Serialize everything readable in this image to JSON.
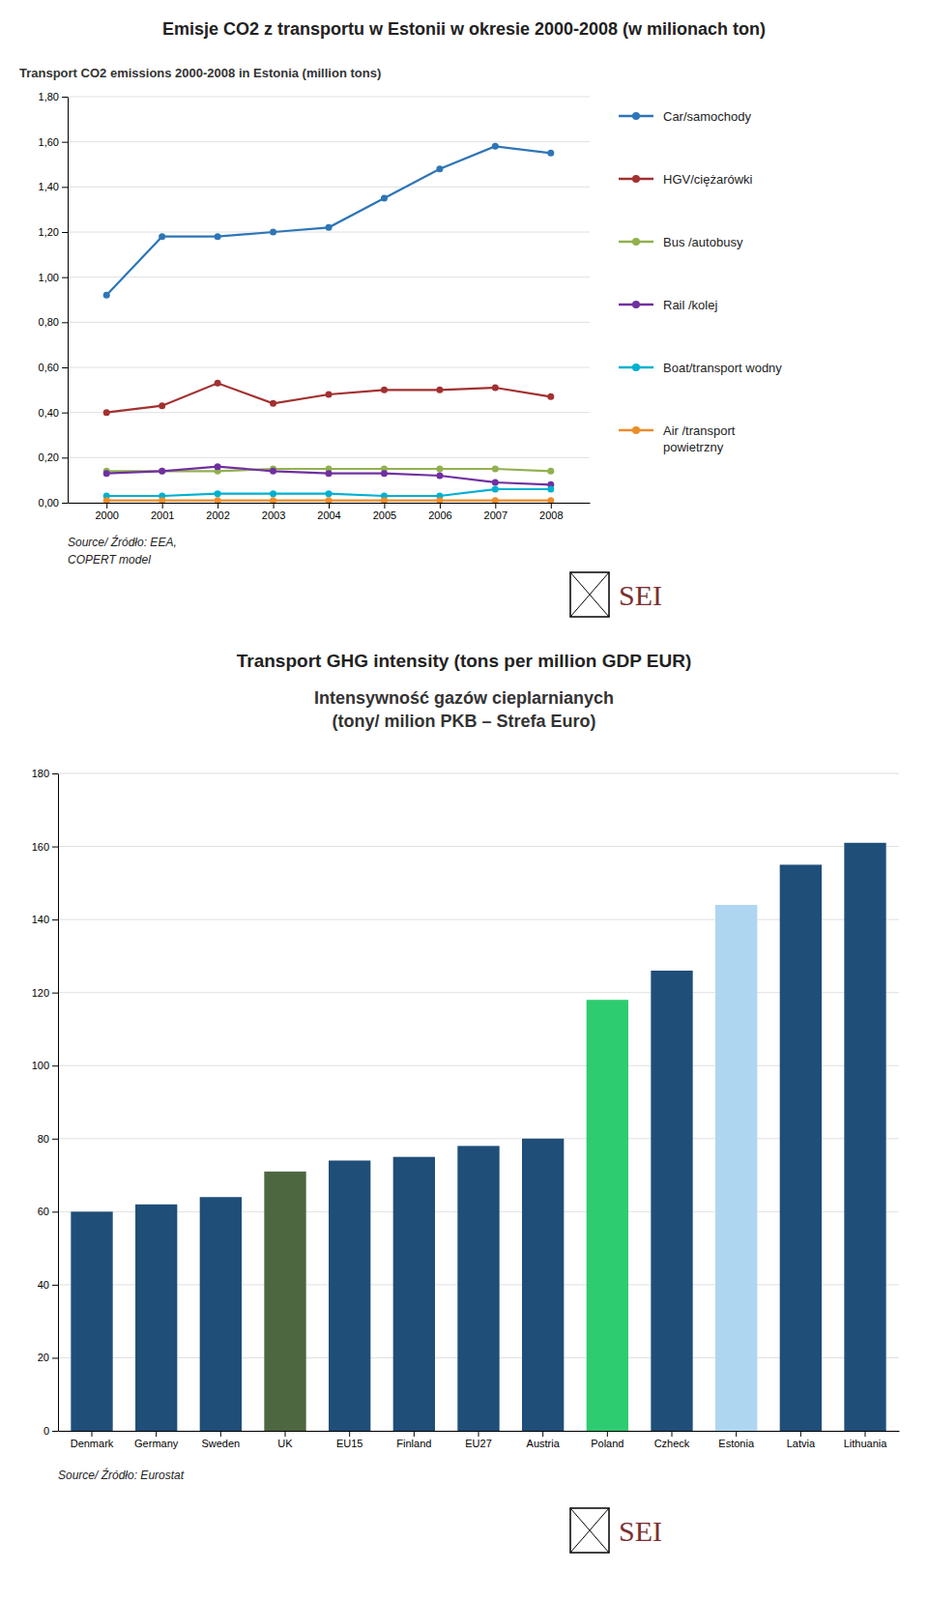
{
  "chart_data": [
    {
      "type": "line",
      "title": "Emisje CO2 z transportu w Estonii w okresie 2000-2008 (w milionach ton)",
      "subtitle": "Transport CO2 emissions 2000-2008 in Estonia (million tons)",
      "x": [
        2000,
        2001,
        2002,
        2003,
        2004,
        2005,
        2006,
        2007,
        2008
      ],
      "xlim": [
        1999.3,
        2008.7
      ],
      "xticks": [
        2000,
        2001,
        2002,
        2003,
        2004,
        2005,
        2006,
        2007,
        2008
      ],
      "ylim": [
        0.0,
        1.8
      ],
      "yticks": [
        {
          "value": 0.0,
          "label": "0,00"
        },
        {
          "value": 0.2,
          "label": "0,20"
        },
        {
          "value": 0.4,
          "label": "0,40"
        },
        {
          "value": 0.6,
          "label": "0,60"
        },
        {
          "value": 0.8,
          "label": "0,80"
        },
        {
          "value": 1.0,
          "label": "1,00"
        },
        {
          "value": 1.2,
          "label": "1,20"
        },
        {
          "value": 1.4,
          "label": "1,40"
        },
        {
          "value": 1.6,
          "label": "1,60"
        },
        {
          "value": 1.8,
          "label": "1,80"
        }
      ],
      "grid": true,
      "legend": "right",
      "marker": "circle",
      "series": [
        {
          "name": "Car/samochody",
          "color": "#2E75B6",
          "values": [
            0.92,
            1.18,
            1.18,
            1.2,
            1.22,
            1.35,
            1.48,
            1.58,
            1.55
          ]
        },
        {
          "name": "HGV/ciężarówki",
          "color": "#A33030",
          "values": [
            0.4,
            0.43,
            0.53,
            0.44,
            0.48,
            0.5,
            0.5,
            0.51,
            0.47
          ]
        },
        {
          "name": "Bus /autobusy",
          "color": "#92B04E",
          "values": [
            0.14,
            0.14,
            0.14,
            0.15,
            0.15,
            0.15,
            0.15,
            0.15,
            0.14
          ]
        },
        {
          "name": "Rail /kolej",
          "color": "#7030A0",
          "values": [
            0.13,
            0.14,
            0.16,
            0.14,
            0.13,
            0.13,
            0.12,
            0.09,
            0.08
          ]
        },
        {
          "name": "Boat/transport wodny",
          "color": "#00B0D0",
          "values": [
            0.03,
            0.03,
            0.04,
            0.04,
            0.04,
            0.03,
            0.03,
            0.06,
            0.06
          ]
        },
        {
          "name": "Air /transport\npowietrzny",
          "color": "#ED8C2A",
          "values": [
            0.01,
            0.01,
            0.01,
            0.01,
            0.01,
            0.01,
            0.01,
            0.01,
            0.01
          ]
        }
      ],
      "annotations": [
        "Source/ Źródło: EEA,",
        "COPERT model",
        "SEI"
      ]
    },
    {
      "type": "bar",
      "title": "Transport GHG intensity (tons per million GDP EUR)",
      "subtitle": "Intensywność gazów cieplarnianych\n(tony/ milion PKB – Strefa Euro)",
      "categories": [
        "Denmark",
        "Germany",
        "Sweden",
        "UK",
        "EU15",
        "Finland",
        "EU27",
        "Austria",
        "Poland",
        "Czheck",
        "Estonia",
        "Latvia",
        "Lithuania"
      ],
      "values": [
        60,
        62,
        64,
        71,
        74,
        75,
        78,
        80,
        118,
        126,
        144,
        155,
        161
      ],
      "colors": [
        "#1F4E79",
        "#1F4E79",
        "#1F4E79",
        "#4D6741",
        "#1F4E79",
        "#1F4E79",
        "#1F4E79",
        "#1F4E79",
        "#2ECC71",
        "#1F4E79",
        "#AED6F1",
        "#1F4E79",
        "#1F4E79"
      ],
      "ylim": [
        0,
        180
      ],
      "yticks": [
        0,
        20,
        40,
        60,
        80,
        100,
        120,
        140,
        160,
        180
      ],
      "grid": true,
      "annotations": [
        "Source/ Źródło: Eurostat",
        "SEI"
      ]
    }
  ]
}
